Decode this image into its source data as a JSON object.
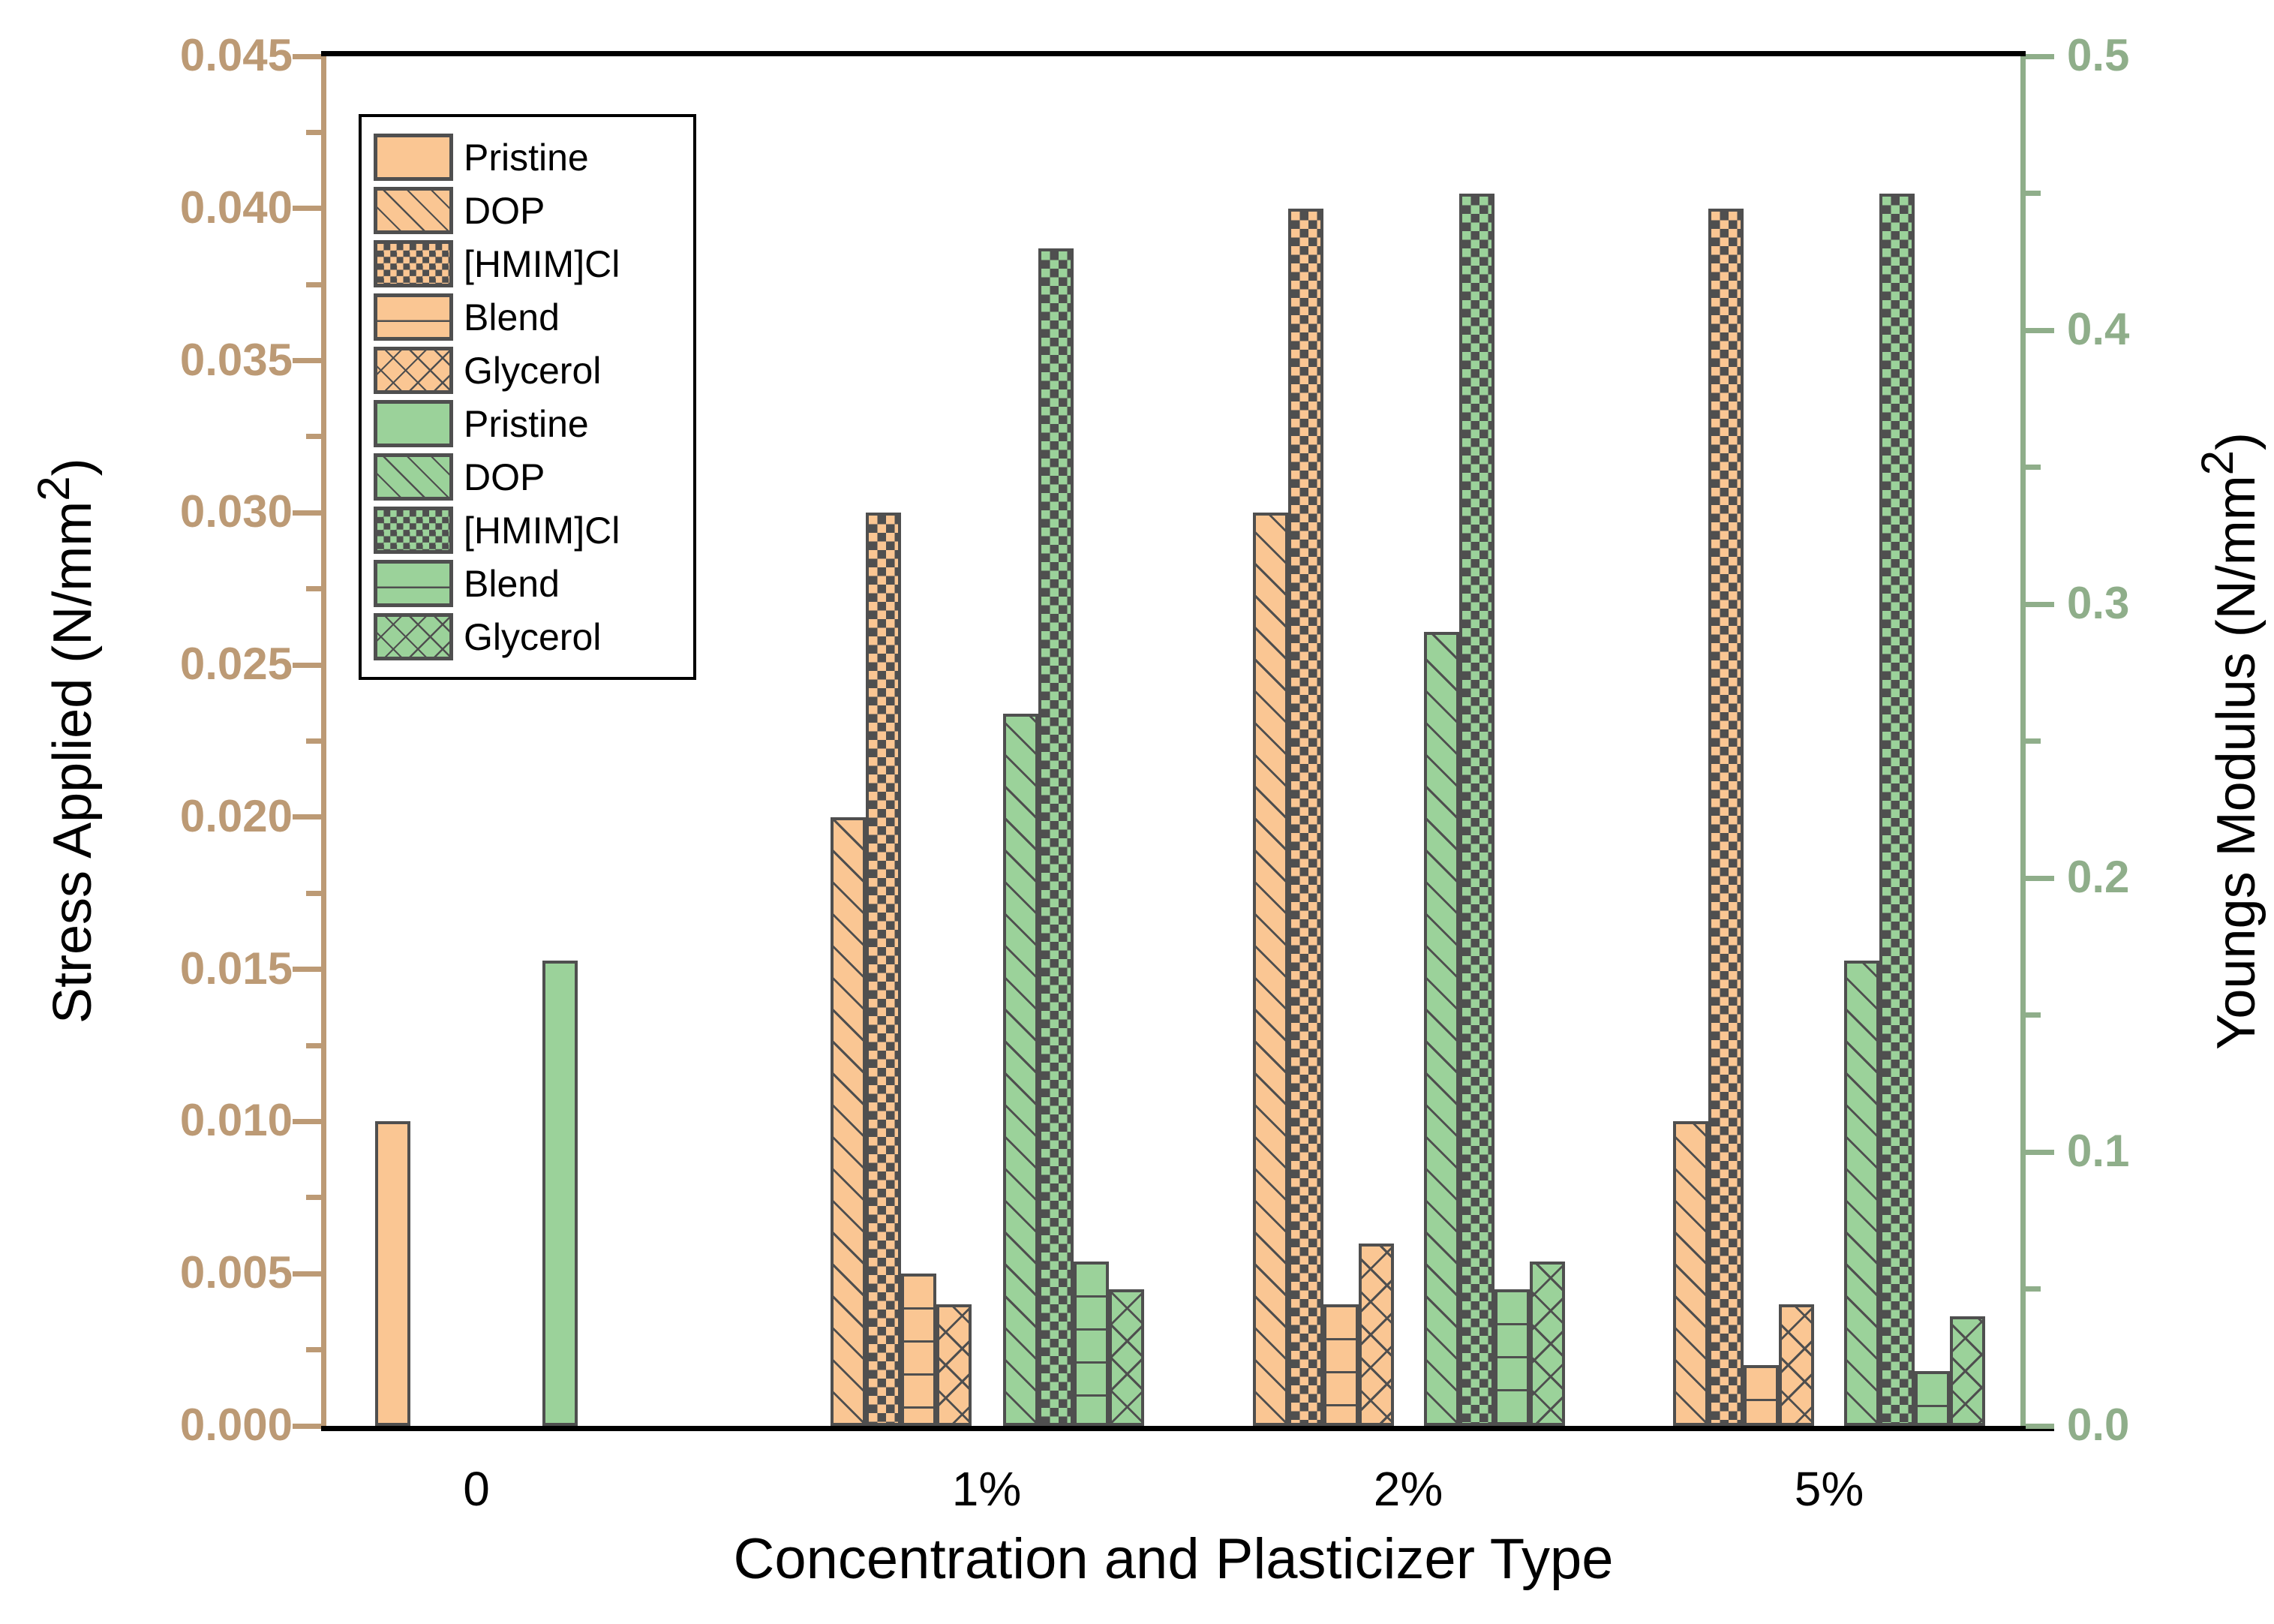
{
  "chart_data": {
    "type": "bar",
    "x_title": "Concentration and Plasticizer Type",
    "categories": [
      "0",
      "1%",
      "2%",
      "5%"
    ],
    "edge_color": "#4F4F4F",
    "background_color": "#ffffff",
    "grid": "off",
    "legend_position": "top-left",
    "left_axis": {
      "label_prefix": "Stress Applied (N/mm",
      "label_sup": "2",
      "label_suffix": ")",
      "min": 0,
      "max": 0.045,
      "major_step": 0.005,
      "minor_step": 0.0025,
      "tick_labels": [
        "0.000",
        "0.005",
        "0.010",
        "0.015",
        "0.020",
        "0.025",
        "0.030",
        "0.035",
        "0.040",
        "0.045"
      ],
      "color": "#BC9A75"
    },
    "right_axis": {
      "label_prefix": "Youngs Modulus (N/mm",
      "label_sup": "2",
      "label_suffix": ")",
      "min": 0,
      "max": 0.5,
      "major_step": 0.1,
      "minor_step": 0.05,
      "tick_labels": [
        "0.0",
        "0.1",
        "0.2",
        "0.3",
        "0.4",
        "0.5"
      ],
      "color": "#8FAE8A"
    },
    "series": [
      {
        "name": "Pristine",
        "axis": "left",
        "color": "#FAC693",
        "pattern": "solid",
        "values": [
          0.01,
          null,
          null,
          null
        ]
      },
      {
        "name": "DOP",
        "axis": "left",
        "color": "#FAC693",
        "pattern": "diagonal",
        "values": [
          null,
          0.02,
          0.03,
          0.01
        ]
      },
      {
        "name": "[HMIM]Cl",
        "axis": "left",
        "color": "#FAC693",
        "pattern": "checker",
        "values": [
          null,
          0.03,
          0.04,
          0.04
        ]
      },
      {
        "name": "Blend",
        "axis": "left",
        "color": "#FAC693",
        "pattern": "horizontal",
        "values": [
          null,
          0.005,
          0.004,
          0.002
        ]
      },
      {
        "name": "Glycerol",
        "axis": "left",
        "color": "#FAC693",
        "pattern": "cross",
        "values": [
          null,
          0.004,
          0.006,
          0.004
        ]
      },
      {
        "name": "Pristine",
        "axis": "right",
        "color": "#9BD29A",
        "pattern": "solid",
        "values": [
          0.17,
          null,
          null,
          null
        ]
      },
      {
        "name": "DOP",
        "axis": "right",
        "color": "#9BD29A",
        "pattern": "diagonal",
        "values": [
          null,
          0.26,
          0.29,
          0.17
        ]
      },
      {
        "name": "[HMIM]Cl",
        "axis": "right",
        "color": "#9BD29A",
        "pattern": "checker",
        "values": [
          null,
          0.43,
          0.45,
          0.45
        ]
      },
      {
        "name": "Blend",
        "axis": "right",
        "color": "#9BD29A",
        "pattern": "horizontal",
        "values": [
          null,
          0.06,
          0.05,
          0.02
        ]
      },
      {
        "name": "Glycerol",
        "axis": "right",
        "color": "#9BD29A",
        "pattern": "cross",
        "values": [
          null,
          0.05,
          0.06,
          0.04
        ]
      }
    ]
  }
}
